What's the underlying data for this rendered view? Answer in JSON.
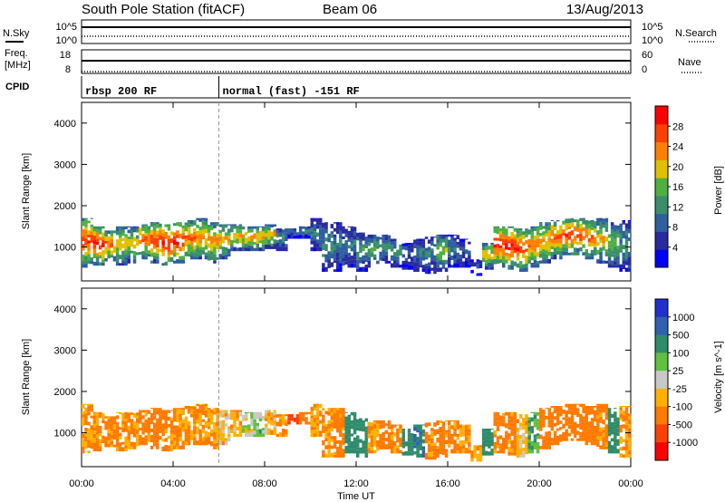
{
  "header": {
    "station": "South Pole Station (fitACF)",
    "beam": "Beam 06",
    "date": "13/Aug/2013"
  },
  "strip_labels": {
    "nsky": "N.Sky",
    "freq_line1": "Freq.",
    "freq_line2": "[MHz]",
    "cpid": "CPID",
    "nsearch": "N.Search",
    "nave": "Nave",
    "nsky_ticks": [
      "10^5",
      "10^0"
    ],
    "nsearch_ticks": [
      "10^5",
      "10^0"
    ],
    "freq_ticks": [
      "18",
      "8"
    ],
    "nave_ticks": [
      "60",
      "0"
    ]
  },
  "cpid": [
    {
      "start_hour": 0,
      "label": "rbsp 200 RF"
    },
    {
      "start_hour": 6,
      "label": "normal (fast) -151 RF"
    }
  ],
  "colors": {
    "background": "#ffffff",
    "power_scale": [
      "#0000ff",
      "#2a2aa0",
      "#2e5f9e",
      "#3a8f6a",
      "#4fb040",
      "#e0c000",
      "#ff8000",
      "#ff4000",
      "#ff0000"
    ],
    "velocity_scale": [
      "#ff0000",
      "#ff4000",
      "#ff7a00",
      "#ffb000",
      "#c8c8c8",
      "#60c040",
      "#2e8c6a",
      "#3060b0",
      "#2030d0"
    ]
  },
  "chart_data": [
    {
      "type": "heatmap",
      "title": "Power",
      "xlabel": "",
      "ylabel": "Slant Range [km]",
      "x_range_hours": [
        0,
        24
      ],
      "ylim": [
        180,
        4500
      ],
      "x_ticks": [
        "00:00",
        "04:00",
        "08:00",
        "12:00",
        "16:00",
        "20:00",
        "00:00"
      ],
      "y_ticks": [
        1000,
        2000,
        3000,
        4000
      ],
      "colorbar": {
        "label": "Power [dB]",
        "range": [
          0,
          32
        ],
        "ticks": [
          4,
          8,
          12,
          16,
          20,
          24,
          28
        ]
      },
      "series": [
        {
          "x": [
            0.0,
            0.5,
            1.0,
            1.5,
            2.0,
            2.5,
            3.0,
            3.5,
            4.0,
            4.5,
            5.0,
            5.5,
            6.0,
            6.5,
            7.0,
            7.5,
            8.0,
            8.5,
            9.0,
            9.5,
            10.0,
            10.5,
            11.0,
            11.5,
            12.0,
            12.5,
            13.0,
            13.5,
            14.0,
            14.5,
            15.0,
            15.5,
            16.0,
            16.5,
            17.0,
            17.5,
            18.0,
            18.5,
            19.0,
            19.5,
            20.0,
            20.5,
            21.0,
            21.5,
            22.0,
            22.5,
            23.0,
            23.5
          ],
          "lower_km": [
            500,
            550,
            650,
            550,
            600,
            700,
            600,
            550,
            600,
            700,
            700,
            600,
            700,
            900,
            900,
            900,
            950,
            900,
            1200,
            1200,
            900,
            400,
            400,
            500,
            400,
            500,
            600,
            500,
            450,
            400,
            350,
            400,
            500,
            500,
            300,
            450,
            500,
            450,
            400,
            500,
            600,
            700,
            800,
            800,
            700,
            600,
            500,
            400
          ],
          "upper_km": [
            1700,
            1500,
            1400,
            1500,
            1500,
            1550,
            1600,
            1550,
            1600,
            1650,
            1700,
            1600,
            1550,
            1550,
            1500,
            1500,
            1550,
            1450,
            1450,
            1500,
            1700,
            1600,
            1600,
            1500,
            1350,
            1300,
            1300,
            1200,
            1100,
            1200,
            1250,
            1300,
            1300,
            1200,
            700,
            1100,
            1500,
            1500,
            1450,
            1500,
            1600,
            1650,
            1700,
            1700,
            1650,
            1700,
            1600,
            1650
          ],
          "peak_db": [
            26,
            28,
            24,
            20,
            18,
            24,
            26,
            28,
            28,
            24,
            22,
            22,
            20,
            20,
            22,
            22,
            20,
            12,
            10,
            12,
            10,
            12,
            10,
            10,
            12,
            14,
            12,
            12,
            8,
            10,
            10,
            16,
            10,
            8,
            6,
            20,
            28,
            28,
            26,
            24,
            22,
            24,
            26,
            26,
            24,
            20,
            16,
            12
          ]
        }
      ]
    },
    {
      "type": "heatmap",
      "title": "Velocity",
      "xlabel": "Time UT",
      "ylabel": "Slant Range [km]",
      "x_range_hours": [
        0,
        24
      ],
      "ylim": [
        180,
        4500
      ],
      "x_ticks": [
        "00:00",
        "04:00",
        "08:00",
        "12:00",
        "16:00",
        "20:00",
        "00:00"
      ],
      "y_ticks": [
        1000,
        2000,
        3000,
        4000
      ],
      "colorbar": {
        "label": "Velocity [m s^-1]",
        "ticks": [
          "1000",
          "500",
          "100",
          "25",
          "-25",
          "-100",
          "-500",
          "-1000"
        ]
      },
      "series": [
        {
          "x": [
            0.0,
            0.5,
            1.0,
            1.5,
            2.0,
            2.5,
            3.0,
            3.5,
            4.0,
            4.5,
            5.0,
            5.5,
            6.0,
            6.5,
            7.0,
            7.5,
            8.0,
            8.5,
            9.0,
            9.5,
            10.0,
            10.5,
            11.0,
            11.5,
            12.0,
            12.5,
            13.0,
            13.5,
            14.0,
            14.5,
            15.0,
            15.5,
            16.0,
            16.5,
            17.0,
            17.5,
            18.0,
            18.5,
            19.0,
            19.5,
            20.0,
            20.5,
            21.0,
            21.5,
            22.0,
            22.5,
            23.0,
            23.5
          ],
          "lower_km": [
            500,
            550,
            650,
            550,
            600,
            700,
            600,
            550,
            600,
            700,
            700,
            600,
            700,
            900,
            900,
            900,
            950,
            900,
            1200,
            1200,
            900,
            400,
            400,
            500,
            400,
            500,
            600,
            500,
            450,
            400,
            350,
            400,
            500,
            500,
            300,
            450,
            500,
            450,
            400,
            500,
            600,
            700,
            800,
            800,
            700,
            600,
            500,
            400
          ],
          "upper_km": [
            1700,
            1500,
            1400,
            1500,
            1500,
            1550,
            1600,
            1550,
            1600,
            1650,
            1700,
            1600,
            1550,
            1550,
            1500,
            1500,
            1550,
            1450,
            1450,
            1500,
            1700,
            1600,
            1600,
            1500,
            1350,
            1300,
            1300,
            1200,
            1100,
            1200,
            1250,
            1300,
            1300,
            1200,
            700,
            1100,
            1500,
            1500,
            1450,
            1500,
            1600,
            1650,
            1700,
            1700,
            1650,
            1700,
            1600,
            1650
          ],
          "velocity_ms": [
            -100,
            -120,
            -150,
            -120,
            -100,
            -150,
            -200,
            -150,
            -120,
            -130,
            -100,
            -100,
            -50,
            -80,
            10,
            50,
            -50,
            -100,
            -600,
            -300,
            -100,
            -100,
            -150,
            200,
            300,
            -100,
            -200,
            -120,
            400,
            500,
            -100,
            -150,
            -120,
            -100,
            -80,
            400,
            -150,
            -150,
            -50,
            100,
            -300,
            -250,
            -200,
            -200,
            -200,
            -150,
            200,
            -100
          ]
        }
      ]
    }
  ]
}
